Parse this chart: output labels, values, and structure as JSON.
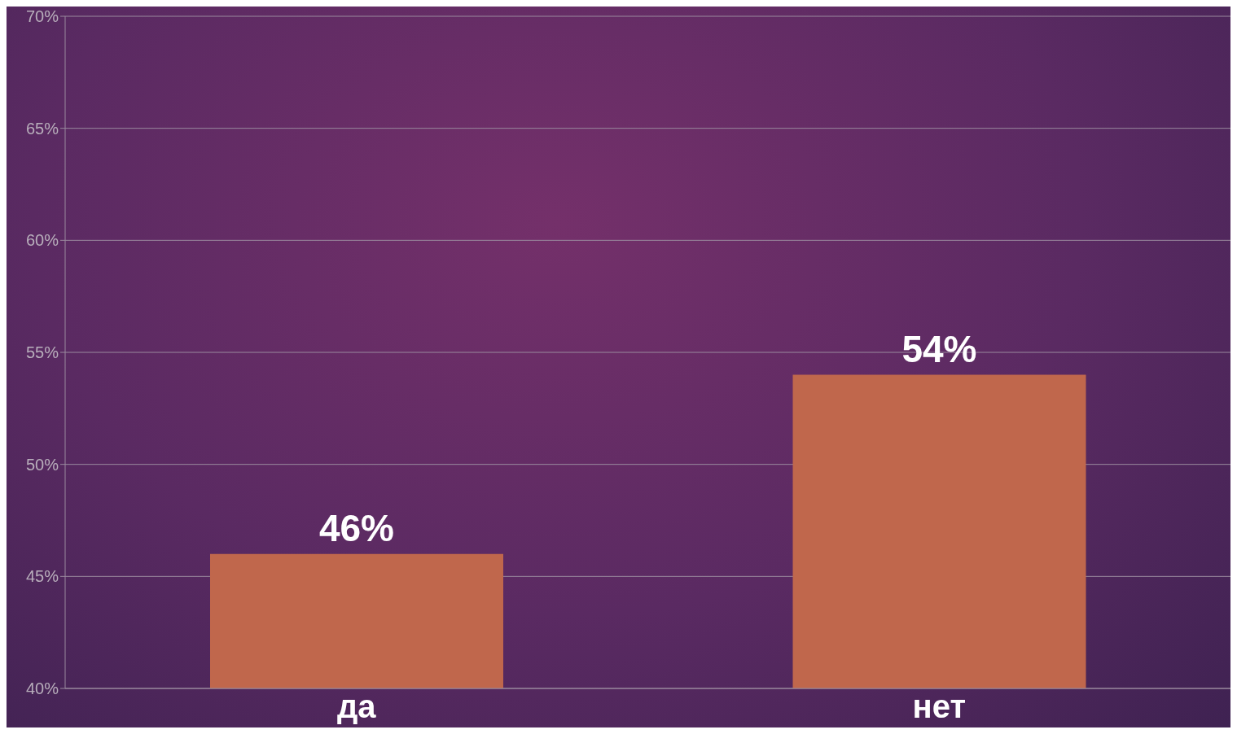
{
  "chart_data": {
    "type": "bar",
    "categories": [
      "да",
      "нет"
    ],
    "values": [
      46,
      54
    ],
    "color": "#c0674c",
    "value_labels": [
      "46%",
      "54%"
    ],
    "ylim": [
      40,
      70
    ],
    "yticks": [
      {
        "value": 40,
        "label": "40%"
      },
      {
        "value": 45,
        "label": "45%"
      },
      {
        "value": 50,
        "label": "50%"
      },
      {
        "value": 55,
        "label": "55%"
      },
      {
        "value": 60,
        "label": "60%"
      },
      {
        "value": 65,
        "label": "65%"
      },
      {
        "value": 70,
        "label": "70%"
      }
    ],
    "grid": "y"
  }
}
